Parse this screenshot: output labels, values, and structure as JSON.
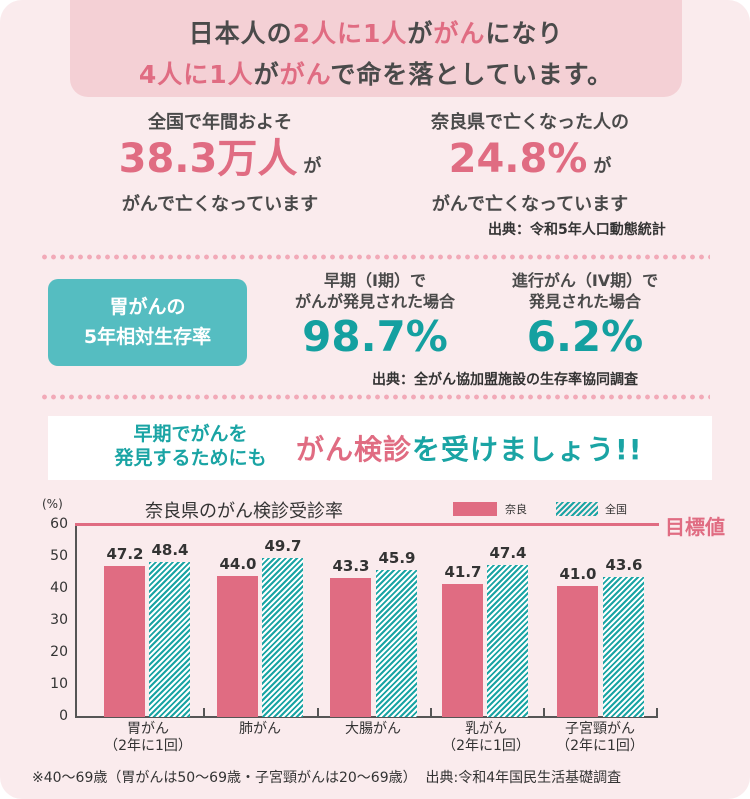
{
  "banner": {
    "line1": [
      {
        "text": "日本人の",
        "style": "dark"
      },
      {
        "text": "2人に1人",
        "style": "pink"
      },
      {
        "text": "が",
        "style": "dark"
      },
      {
        "text": "がん",
        "style": "pink"
      },
      {
        "text": "になり",
        "style": "dark"
      }
    ],
    "line2": [
      {
        "text": "4人に1人",
        "style": "pink"
      },
      {
        "text": "が",
        "style": "dark"
      },
      {
        "text": "がん",
        "style": "pink"
      },
      {
        "text": "で命を落としています。",
        "style": "dark"
      }
    ]
  },
  "stats": {
    "national": {
      "caption": "全国で年間およそ",
      "value": "38.3万人",
      "suffix": "が",
      "bottom": "がんで亡くなっています"
    },
    "nara": {
      "caption": "奈良県で亡くなった人の",
      "value": "24.8%",
      "suffix": "が",
      "bottom": "がんで亡くなっています"
    },
    "source": "出典：令和5年人口動態統計"
  },
  "survival": {
    "badge_line1": "胃がんの",
    "badge_line2": "5年相対生存率",
    "early": {
      "caption_line1": "早期（I期）で",
      "caption_line2": "がんが発見された場合",
      "value": "98.7%"
    },
    "advanced": {
      "caption_line1": "進行がん（IV期）で",
      "caption_line2": "発見された場合",
      "value": "6.2%"
    },
    "source": "出典：全がん協加盟施設の生存率協同調査"
  },
  "cta": {
    "left_line1": "早期でがんを",
    "left_line2": "発見するためにも",
    "right_parts": [
      {
        "text": "がん検診",
        "style": "pink"
      },
      {
        "text": "を受けましょう!!",
        "style": "teal"
      }
    ]
  },
  "colors": {
    "pink": "#e06c82",
    "teal": "#1aa4a4",
    "badge": "#55bdc1",
    "banner_bg": "#f4d0d5",
    "card_bg": "#faebed"
  },
  "chart_data": {
    "type": "bar",
    "title": "奈良県のがん検診受診率",
    "ylabel": "(%)",
    "xlabel": "",
    "ylim": [
      0,
      60
    ],
    "yticks": [
      0,
      10,
      20,
      30,
      40,
      50,
      60
    ],
    "grid": false,
    "legend_position": "top-right",
    "categories": [
      "胃がん（2年に1回）",
      "肺がん",
      "大腸がん",
      "乳がん（2年に1回）",
      "子宮頸がん（2年に1回）"
    ],
    "category_lines": [
      [
        "胃がん",
        "（2年に1回）"
      ],
      [
        "肺がん",
        ""
      ],
      [
        "大腸がん",
        ""
      ],
      [
        "乳がん",
        "（2年に1回）"
      ],
      [
        "子宮頸がん",
        "（2年に1回）"
      ]
    ],
    "series": [
      {
        "name": "奈良",
        "values": [
          47.2,
          44.0,
          43.3,
          41.7,
          41.0
        ],
        "labels": [
          "47.2",
          "44.0",
          "43.3",
          "41.7",
          "41.0"
        ]
      },
      {
        "name": "全国",
        "values": [
          48.4,
          49.7,
          45.9,
          47.4,
          43.6
        ],
        "labels": [
          "48.4",
          "49.7",
          "45.9",
          "47.4",
          "43.6"
        ]
      }
    ],
    "annotations": [
      {
        "type": "hline",
        "y": 60,
        "label": "目標値"
      }
    ],
    "footnote": "※40～69歳（胃がんは50～69歳・子宮頸がんは20～69歳）",
    "source": "出典:令和4年国民生活基礎調査"
  }
}
